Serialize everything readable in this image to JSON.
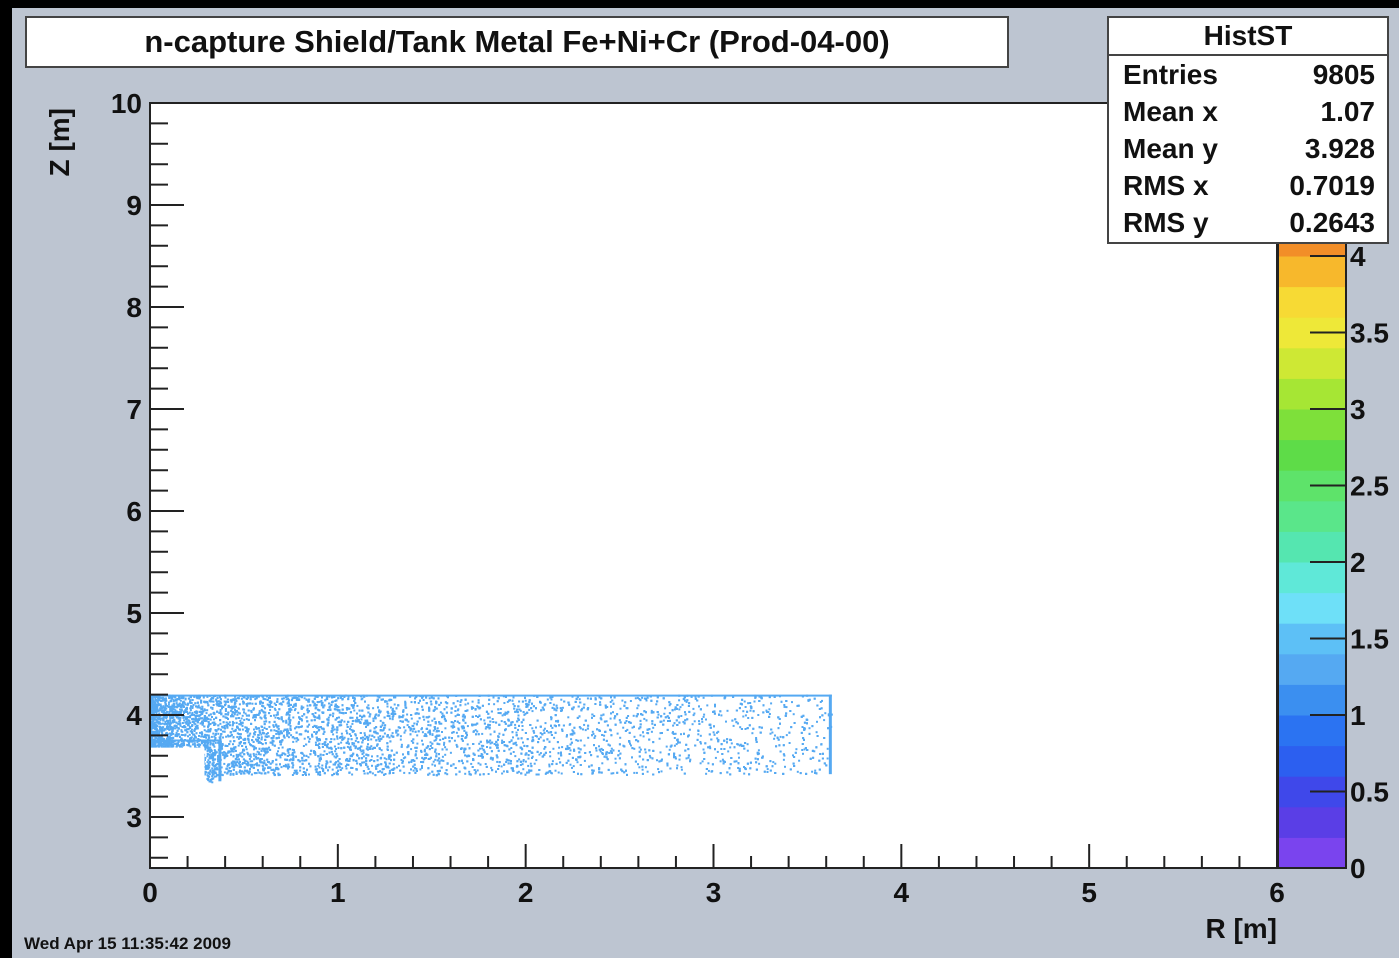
{
  "chart_data": {
    "type": "heatmap",
    "title": "n-capture Shield/Tank Metal Fe+Ni+Cr (Prod-04-00)",
    "xlabel": "R [m]",
    "ylabel": "Z [m]",
    "xlim": [
      0,
      6
    ],
    "ylim": [
      2.5,
      10
    ],
    "x_ticks": [
      "0",
      "1",
      "2",
      "3",
      "4",
      "5",
      "6"
    ],
    "y_ticks": [
      "3",
      "4",
      "5",
      "6",
      "7",
      "8",
      "9",
      "10"
    ],
    "colorbar": {
      "range": [
        0,
        5
      ],
      "ticks": [
        "0",
        "0.5",
        "1",
        "1.5",
        "2",
        "2.5",
        "3",
        "3.5",
        "4"
      ],
      "colors": [
        "#7a44ee",
        "#5a3ee6",
        "#3f48ea",
        "#2c5ff0",
        "#2b73f2",
        "#3b8ff0",
        "#55a9f2",
        "#5dc0f6",
        "#6ee0f8",
        "#5fe8d8",
        "#55e6b0",
        "#5ae68a",
        "#5ee36a",
        "#5edc48",
        "#7ee03a",
        "#a6e634",
        "#cee834",
        "#eee838",
        "#f7da34",
        "#f7b82c",
        "#f28e28",
        "#ee6626",
        "#e84a24",
        "#e02a22",
        "#d41422"
      ]
    },
    "regions": [
      {
        "r": [
          0.0,
          3.63
        ],
        "z": [
          3.42,
          4.2
        ],
        "value": 1.3
      },
      {
        "r": [
          0.0,
          0.38
        ],
        "z": [
          3.7,
          3.76
        ],
        "value": 1.3
      },
      {
        "r": [
          0.3,
          0.38
        ],
        "z": [
          3.35,
          3.76
        ],
        "value": 1.3
      }
    ],
    "stats": {
      "name": "HistST",
      "rows": [
        {
          "label": "Entries",
          "value": "9805"
        },
        {
          "label": "Mean x",
          "value": "1.07"
        },
        {
          "label": "Mean y",
          "value": "3.928"
        },
        {
          "label": "RMS x",
          "value": "0.7019"
        },
        {
          "label": "RMS y",
          "value": "0.2643"
        }
      ]
    }
  },
  "datestamp": "Wed Apr 15 11:35:42 2009"
}
